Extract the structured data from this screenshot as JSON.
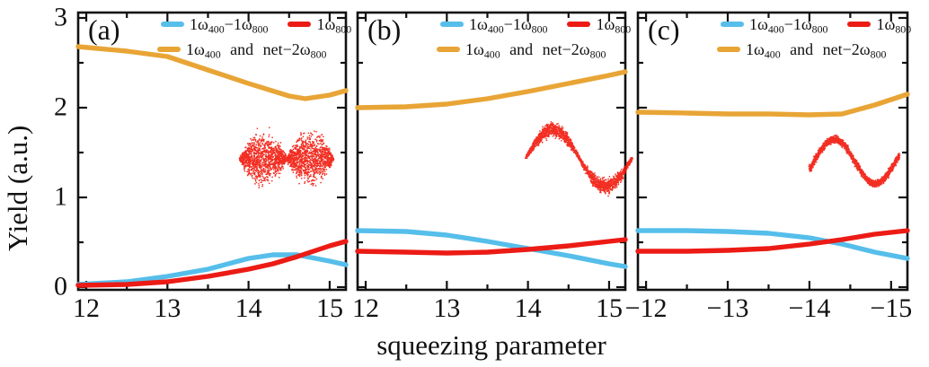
{
  "figure": {
    "ylabel": "Yield (a.u.)",
    "xlabel": "squeezing parameter",
    "colors": {
      "blue": "#56BEEA",
      "red": "#EC1B15",
      "yellow": "#E8A536",
      "scatter_red": "#F1170B",
      "axis": "#111111"
    }
  },
  "legend": {
    "entries": [
      {
        "color_key": "blue",
        "label": "1ω_{400}−1ω_{800}"
      },
      {
        "color_key": "red",
        "label": "1ω_{800}"
      },
      {
        "color_key": "yellow",
        "label": "1ω_{400} and net−2ω_{800}"
      }
    ]
  },
  "chart_data": [
    {
      "type": "line",
      "panel_label": "(a)",
      "xlim": [
        11.9,
        15.2
      ],
      "ylim": [
        -0.03,
        3.06
      ],
      "x_ticks": [
        12,
        13,
        14,
        15
      ],
      "x_tick_labels": [
        "12",
        "13",
        "14",
        "15"
      ],
      "y_ticks": [
        0,
        1,
        2,
        3
      ],
      "y_tick_labels": [
        "0",
        "1",
        "2",
        "3"
      ],
      "series": [
        {
          "name": "1ω_{400} and net−2ω_{800}",
          "color_key": "yellow",
          "x": [
            11.9,
            12.5,
            13,
            13.5,
            14,
            14.5,
            14.7,
            15,
            15.2
          ],
          "y": [
            2.68,
            2.63,
            2.57,
            2.42,
            2.27,
            2.13,
            2.1,
            2.14,
            2.19
          ]
        },
        {
          "name": "1ω_{400}−1ω_{800}",
          "color_key": "blue",
          "x": [
            11.9,
            12.5,
            13,
            13.5,
            14,
            14.3,
            14.6,
            15,
            15.2
          ],
          "y": [
            0.03,
            0.06,
            0.12,
            0.2,
            0.32,
            0.36,
            0.36,
            0.29,
            0.25
          ]
        },
        {
          "name": "1ω_{800}",
          "color_key": "red",
          "x": [
            11.9,
            12.5,
            13,
            13.5,
            14,
            14.3,
            14.6,
            15,
            15.2
          ],
          "y": [
            0.02,
            0.03,
            0.06,
            0.12,
            0.2,
            0.26,
            0.34,
            0.46,
            0.51
          ]
        }
      ],
      "inset": {
        "shape": "bowtie",
        "description": "red phase-space scatter, bowtie squeezed state",
        "x_center": 14.47,
        "y_center": 1.43,
        "x_span": 1.15,
        "y_span": 0.82,
        "points": 2600,
        "seed": 7
      }
    },
    {
      "type": "line",
      "panel_label": "(b)",
      "xlim": [
        11.9,
        15.2
      ],
      "ylim": [
        -0.03,
        3.06
      ],
      "x_ticks": [
        12,
        13,
        14,
        15
      ],
      "x_tick_labels": [
        "12",
        "13",
        "14",
        "15"
      ],
      "y_ticks": [
        0,
        1,
        2,
        3
      ],
      "y_tick_labels": [
        "0",
        "1",
        "2",
        "3"
      ],
      "series": [
        {
          "name": "1ω_{400} and net−2ω_{800}",
          "color_key": "yellow",
          "x": [
            11.9,
            12.5,
            13,
            13.5,
            14,
            14.5,
            15,
            15.2
          ],
          "y": [
            2.0,
            2.01,
            2.04,
            2.1,
            2.18,
            2.27,
            2.36,
            2.4
          ]
        },
        {
          "name": "1ω_{400}−1ω_{800}",
          "color_key": "blue",
          "x": [
            11.9,
            12.5,
            13,
            13.5,
            14,
            14.5,
            15,
            15.2
          ],
          "y": [
            0.63,
            0.62,
            0.58,
            0.51,
            0.43,
            0.35,
            0.26,
            0.23
          ]
        },
        {
          "name": "1ω_{800}",
          "color_key": "red",
          "x": [
            11.9,
            12.5,
            13,
            13.5,
            14,
            14.5,
            15,
            15.2
          ],
          "y": [
            0.4,
            0.39,
            0.38,
            0.39,
            0.42,
            0.46,
            0.51,
            0.53
          ]
        }
      ],
      "inset": {
        "shape": "sine",
        "description": "red phase-space scatter, sine-shaped squeezed state",
        "x_center": 14.63,
        "y_center": 1.44,
        "x_span": 1.31,
        "y_span": 0.72,
        "points": 2100,
        "seed": 11
      }
    },
    {
      "type": "line",
      "panel_label": "(c)",
      "xlim": [
        -11.9,
        -15.2
      ],
      "ylim": [
        -0.03,
        3.06
      ],
      "x_ticks": [
        -12,
        -13,
        -14,
        -15
      ],
      "x_tick_labels": [
        "−12",
        "−13",
        "−14",
        "−15"
      ],
      "y_ticks": [
        0,
        1,
        2,
        3
      ],
      "y_tick_labels": [
        "0",
        "1",
        "2",
        "3"
      ],
      "series": [
        {
          "name": "1ω_{400} and net−2ω_{800}",
          "color_key": "yellow",
          "x": [
            -11.9,
            -12.5,
            -13,
            -13.5,
            -14,
            -14.4,
            -14.8,
            -15.2
          ],
          "y": [
            1.95,
            1.94,
            1.93,
            1.93,
            1.92,
            1.93,
            2.03,
            2.15
          ]
        },
        {
          "name": "1ω_{400}−1ω_{800}",
          "color_key": "blue",
          "x": [
            -11.9,
            -12.5,
            -13,
            -13.5,
            -14,
            -14.4,
            -14.8,
            -15.2
          ],
          "y": [
            0.63,
            0.63,
            0.62,
            0.6,
            0.55,
            0.48,
            0.39,
            0.32
          ]
        },
        {
          "name": "1ω_{800}",
          "color_key": "red",
          "x": [
            -11.9,
            -12.5,
            -13,
            -13.5,
            -14,
            -14.4,
            -14.8,
            -15.2
          ],
          "y": [
            0.4,
            0.4,
            0.41,
            0.43,
            0.48,
            0.53,
            0.59,
            0.63
          ]
        }
      ],
      "inset": {
        "shape": "sine_band",
        "description": "red phase-space scatter, noisy sine band squeezed state",
        "x_center": -14.55,
        "y_center": 1.4,
        "x_span": 1.1,
        "y_span": 0.62,
        "points": 2300,
        "seed": 13
      }
    }
  ]
}
